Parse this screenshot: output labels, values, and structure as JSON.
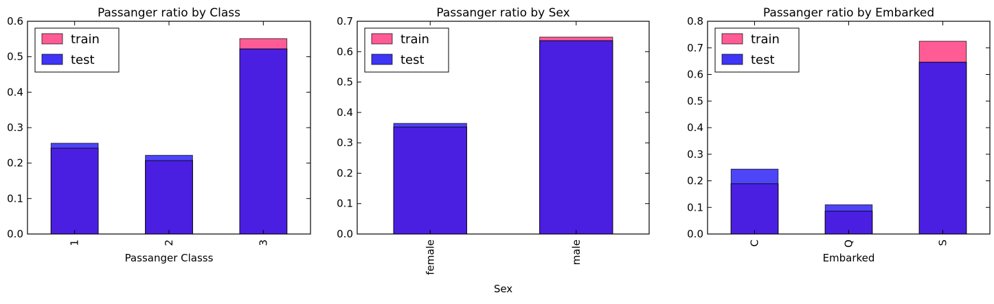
{
  "colors": {
    "train": "#ff5c95",
    "test": "#3f35f5",
    "overlap": "#4b1fe1",
    "edge": "#000000"
  },
  "chart_data": [
    {
      "type": "bar",
      "title": "Passanger ratio by Class",
      "xlabel": "Passanger Classs",
      "ylabel": "",
      "categories": [
        "1",
        "2",
        "3"
      ],
      "ylim": [
        0,
        0.6
      ],
      "yticks": [
        "0.0",
        "0.1",
        "0.2",
        "0.3",
        "0.4",
        "0.5",
        "0.6"
      ],
      "legend_position": "top-left",
      "series": [
        {
          "name": "train",
          "values": [
            0.242,
            0.207,
            0.551
          ]
        },
        {
          "name": "test",
          "values": [
            0.256,
            0.222,
            0.522
          ]
        }
      ]
    },
    {
      "type": "bar",
      "title": "Passanger ratio by Sex",
      "xlabel": "Sex",
      "ylabel": "",
      "categories": [
        "female",
        "male"
      ],
      "ylim": [
        0,
        0.7
      ],
      "yticks": [
        "0.0",
        "0.1",
        "0.2",
        "0.3",
        "0.4",
        "0.5",
        "0.6",
        "0.7"
      ],
      "legend_position": "top-left",
      "series": [
        {
          "name": "train",
          "values": [
            0.352,
            0.648
          ]
        },
        {
          "name": "test",
          "values": [
            0.364,
            0.636
          ]
        }
      ]
    },
    {
      "type": "bar",
      "title": "Passanger ratio by Embarked",
      "xlabel": "Embarked",
      "ylabel": "",
      "categories": [
        "C",
        "Q",
        "S"
      ],
      "ylim": [
        0,
        0.8
      ],
      "yticks": [
        "0.0",
        "0.1",
        "0.2",
        "0.3",
        "0.4",
        "0.5",
        "0.6",
        "0.7",
        "0.8"
      ],
      "legend_position": "top-left",
      "series": [
        {
          "name": "train",
          "values": [
            0.189,
            0.086,
            0.725
          ]
        },
        {
          "name": "test",
          "values": [
            0.244,
            0.11,
            0.646
          ]
        }
      ]
    }
  ]
}
